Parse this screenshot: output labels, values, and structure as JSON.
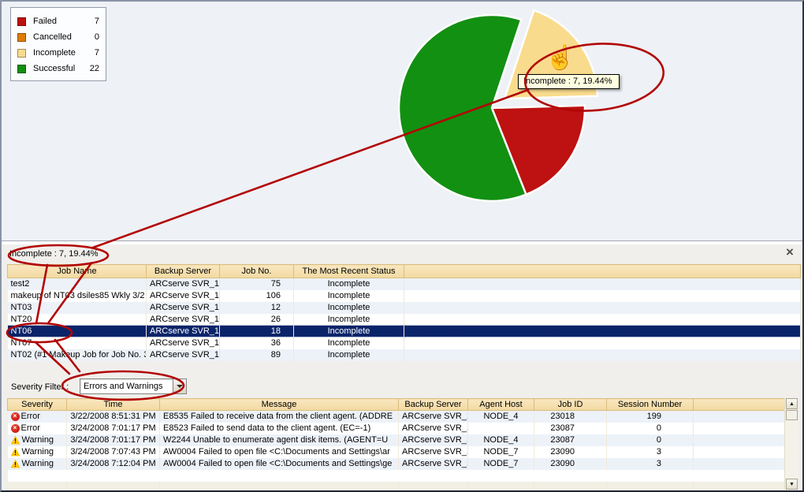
{
  "legend": {
    "items": [
      {
        "label": "Failed",
        "value": 7,
        "color": "#be1111"
      },
      {
        "label": "Cancelled",
        "value": 0,
        "color": "#e07c04"
      },
      {
        "label": "Incomplete",
        "value": 7,
        "color": "#f9db8d"
      },
      {
        "label": "Successful",
        "value": 22,
        "color": "#129012"
      }
    ]
  },
  "chart_data": {
    "type": "pie",
    "categories": [
      "Failed",
      "Cancelled",
      "Incomplete",
      "Successful"
    ],
    "values": [
      7,
      0,
      7,
      22
    ],
    "total": 36,
    "colors": [
      "#be1111",
      "#e07c04",
      "#f9db8d",
      "#129012"
    ],
    "percent_labels": [
      "19.44%",
      "0%",
      "19.44%",
      "61.11%"
    ],
    "exploded_slice": "Incomplete",
    "start_angle_deg": 18.4,
    "order_clockwise": [
      "Incomplete",
      "Failed",
      "Successful"
    ],
    "legend_position": "top-left"
  },
  "pie_tooltip": {
    "text": "Incomplete : 7, 19.44%"
  },
  "panel": {
    "title": "Incomplete : 7, 19.44%",
    "jobs_table": {
      "columns": [
        "Job Name",
        "Backup Server",
        "Job No.",
        "The Most Recent Status"
      ],
      "rows": [
        {
          "name": "test2",
          "server": "ARCserve SVR_1",
          "job_no": 75,
          "status": "Incomplete",
          "state": ""
        },
        {
          "name": "makeup of NT03 dsiles85 Wkly 3/2",
          "server": "ARCserve SVR_1",
          "job_no": 106,
          "status": "Incomplete",
          "state": ""
        },
        {
          "name": "NT03",
          "server": "ARCserve SVR_1",
          "job_no": 12,
          "status": "Incomplete",
          "state": ""
        },
        {
          "name": "NT20",
          "server": "ARCserve SVR_1",
          "job_no": 26,
          "status": "Incomplete",
          "state": ""
        },
        {
          "name": "NT06",
          "server": "ARCserve SVR_1",
          "job_no": 18,
          "status": "Incomplete",
          "state": "selected"
        },
        {
          "name": "NT07",
          "server": "ARCserve SVR_1",
          "job_no": 36,
          "status": "Incomplete",
          "state": ""
        },
        {
          "name": "NT02 (#1 Makeup Job for Job No. 3",
          "server": "ARCserve SVR_1",
          "job_no": 89,
          "status": "Incomplete",
          "state": ""
        }
      ]
    },
    "severity_filter": {
      "label": "Severity Filter :",
      "value": "Errors and Warnings"
    },
    "log_table": {
      "columns": [
        "Severity",
        "Time",
        "Message",
        "Backup Server",
        "Agent Host",
        "Job ID",
        "Session Number"
      ],
      "rows": [
        {
          "severity": "Error",
          "time": "3/22/2008 8:51:31 PM",
          "message": "E8535 Failed to receive data from the client agent. (ADDRE",
          "server": "ARCserve SVR_1",
          "host": "NODE_4",
          "job_id": 23018,
          "session": 199
        },
        {
          "severity": "Error",
          "time": "3/24/2008 7:01:17 PM",
          "message": "E8523 Failed to send data to the client agent. (EC=-1)",
          "server": "ARCserve SVR_1",
          "host": "",
          "job_id": 23087,
          "session": 0
        },
        {
          "severity": "Warning",
          "time": "3/24/2008 7:01:17 PM",
          "message": "W2244 Unable to enumerate agent disk items. (AGENT=U",
          "server": "ARCserve SVR_1",
          "host": "NODE_4",
          "job_id": 23087,
          "session": 0
        },
        {
          "severity": "Warning",
          "time": "3/24/2008 7:07:43 PM",
          "message": "AW0004 Failed to open file <C:\\Documents and Settings\\ar",
          "server": "ARCserve SVR_1",
          "host": "NODE_7",
          "job_id": 23090,
          "session": 3
        },
        {
          "severity": "Warning",
          "time": "3/24/2008 7:12:04 PM",
          "message": "AW0004 Failed to open file <C:\\Documents and Settings\\ge",
          "server": "ARCserve SVR_1",
          "host": "NODE_7",
          "job_id": 23090,
          "session": 3
        }
      ]
    }
  },
  "icons": {
    "close": "×",
    "scroll_up": "▲",
    "scroll_down": "▼",
    "cursor_hand": "☝",
    "error_glyph": "×",
    "warning_glyph": "!"
  },
  "annotation_color": "#b20505"
}
